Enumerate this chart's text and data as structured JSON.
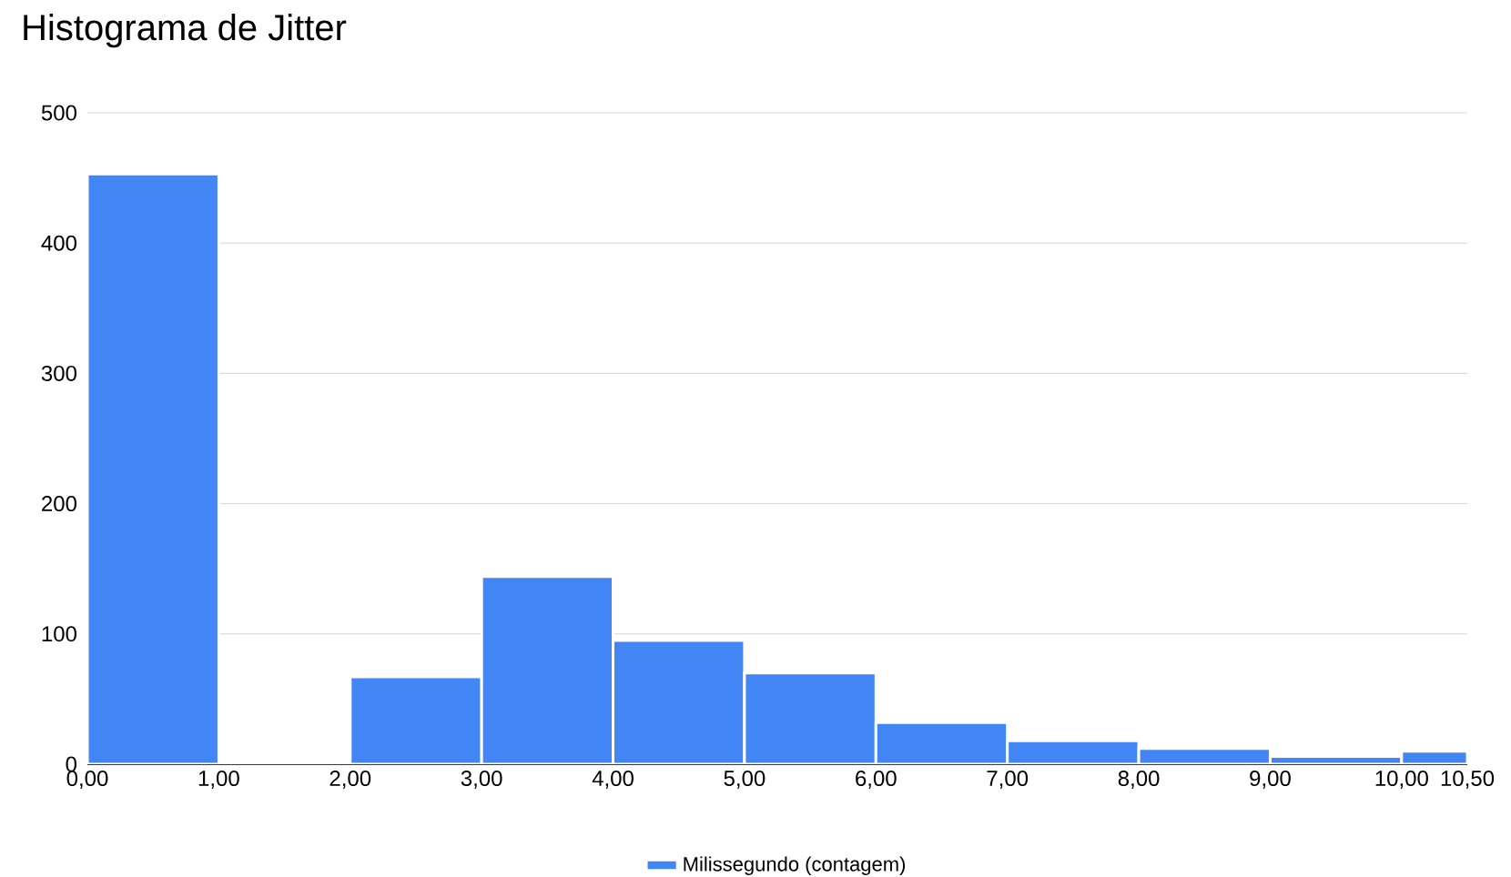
{
  "chart_data": {
    "type": "histogram",
    "title": "Histograma de Jitter",
    "bins": [
      0,
      1,
      2,
      3,
      4,
      5,
      6,
      7,
      8,
      9,
      10,
      10.5
    ],
    "series": [
      {
        "name": "Milissegundo (contagem)",
        "color": "#4285f4",
        "values": [
          453,
          0,
          67,
          144,
          95,
          70,
          32,
          18,
          12,
          6,
          10
        ]
      }
    ],
    "xlim": [
      0,
      10.5
    ],
    "xticks": [
      {
        "value": 0,
        "label": "0,00"
      },
      {
        "value": 1,
        "label": "1,00"
      },
      {
        "value": 2,
        "label": "2,00"
      },
      {
        "value": 3,
        "label": "3,00"
      },
      {
        "value": 4,
        "label": "4,00"
      },
      {
        "value": 5,
        "label": "5,00"
      },
      {
        "value": 6,
        "label": "6,00"
      },
      {
        "value": 7,
        "label": "7,00"
      },
      {
        "value": 8,
        "label": "8,00"
      },
      {
        "value": 9,
        "label": "9,00"
      },
      {
        "value": 10,
        "label": "10,00"
      },
      {
        "value": 10.5,
        "label": "10,50"
      }
    ],
    "ylim": [
      0,
      500
    ],
    "yticks": [
      0,
      100,
      200,
      300,
      400,
      500
    ],
    "grid": "y",
    "legend": "bottom"
  }
}
